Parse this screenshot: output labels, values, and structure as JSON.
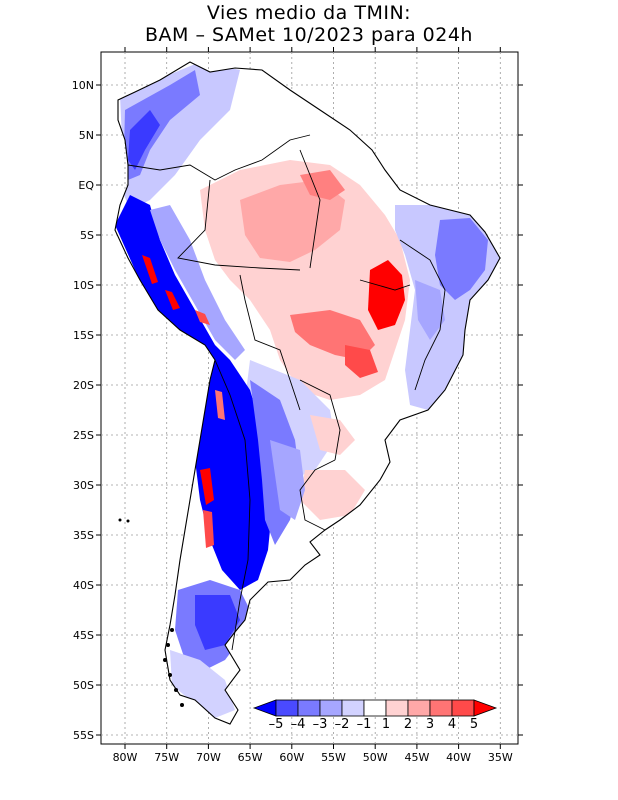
{
  "title": {
    "line1": "Vies medio da TMIN:",
    "line2": "BAM – SAMet 10/2023  para 024h"
  },
  "map": {
    "lon_range": [
      -83,
      -34
    ],
    "lat_range": [
      -56,
      12
    ],
    "lat_ticks": [
      "10N",
      "5N",
      "EQ",
      "5S",
      "10S",
      "15S",
      "20S",
      "25S",
      "30S",
      "35S",
      "40S",
      "45S",
      "50S",
      "55S"
    ],
    "lon_ticks": [
      "80W",
      "75W",
      "70W",
      "65W",
      "60W",
      "55W",
      "50W",
      "45W",
      "40W",
      "35W"
    ],
    "grid": true
  },
  "colorbar": {
    "labels": [
      "–5",
      "–4",
      "–3",
      "–2",
      "–1",
      "1",
      "2",
      "3",
      "4",
      "5"
    ],
    "colors": [
      "#0000ff",
      "#4a4aff",
      "#7a7aff",
      "#a6a6ff",
      "#d2d2ff",
      "#ffffff",
      "#ffd2d2",
      "#ffa8a8",
      "#ff7474",
      "#ff4a4a",
      "#ff0000"
    ]
  },
  "palette": {
    "strong_blue": "#0000ff",
    "mid_blue": "#6a6aff",
    "light_blue": "#c8c8ff",
    "light_red": "#ffd2d2",
    "mid_red": "#ff8080",
    "strong_red": "#ff0000"
  }
}
